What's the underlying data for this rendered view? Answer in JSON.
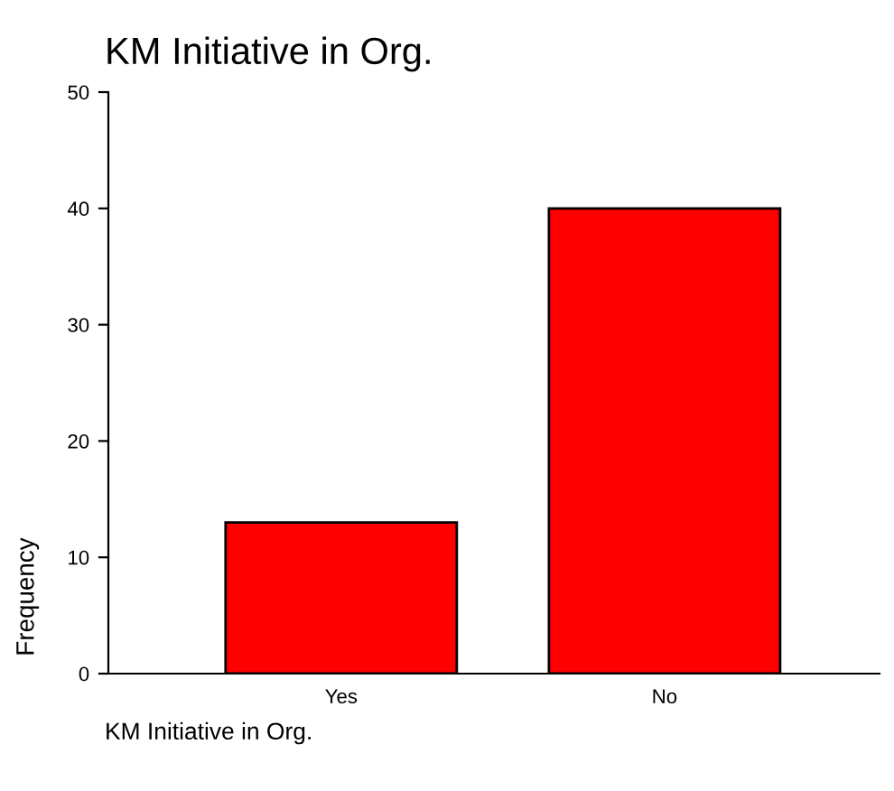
{
  "chart_data": {
    "type": "bar",
    "title": "KM Initiative in Org.",
    "xlabel": "KM Initiative in Org.",
    "ylabel": "Frequency",
    "categories": [
      "Yes",
      "No"
    ],
    "values": [
      13,
      40
    ],
    "color": "#ff0000",
    "ylim": [
      0,
      50
    ],
    "yticks": [
      0,
      10,
      20,
      30,
      40,
      50
    ],
    "grid": false,
    "legend": false
  }
}
